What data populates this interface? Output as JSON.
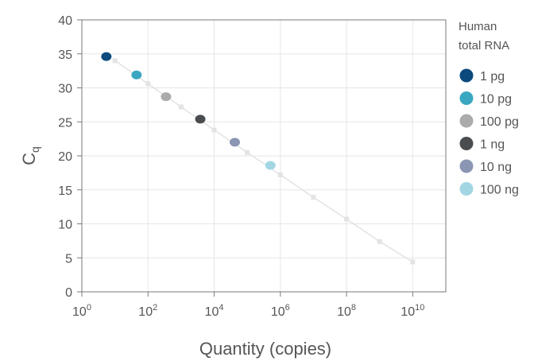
{
  "chart_data": {
    "type": "scatter",
    "xlabel": "Quantity (copies)",
    "ylabel": {
      "base": "C",
      "subscript": "q"
    },
    "x_scale": "log10",
    "xlim": [
      1,
      100000000000
    ],
    "ylim": [
      0,
      40
    ],
    "x_ticks": [
      {
        "value": 1,
        "base": "10",
        "exp": "0"
      },
      {
        "value": 100,
        "base": "10",
        "exp": "2"
      },
      {
        "value": 10000,
        "base": "10",
        "exp": "4"
      },
      {
        "value": 1000000,
        "base": "10",
        "exp": "6"
      },
      {
        "value": 100000000,
        "base": "10",
        "exp": "8"
      },
      {
        "value": 10000000000,
        "base": "10",
        "exp": "10"
      }
    ],
    "y_ticks": [
      "0",
      "5",
      "10",
      "15",
      "20",
      "25",
      "30",
      "35",
      "40"
    ],
    "grid": true,
    "legend": {
      "title": [
        "Human",
        "total RNA"
      ],
      "position": "right"
    },
    "standard_curve": {
      "color": "#e3e3e3",
      "points": [
        {
          "x": 10,
          "y": 34.0
        },
        {
          "x": 100,
          "y": 30.6
        },
        {
          "x": 1000,
          "y": 27.2
        },
        {
          "x": 10000,
          "y": 23.8
        },
        {
          "x": 100000,
          "y": 20.5
        },
        {
          "x": 1000000,
          "y": 17.2
        },
        {
          "x": 10000000,
          "y": 13.9
        },
        {
          "x": 100000000,
          "y": 10.7
        },
        {
          "x": 1000000000,
          "y": 7.4
        },
        {
          "x": 10000000000,
          "y": 4.4
        }
      ]
    },
    "series": [
      {
        "name": "1 pg",
        "color": "#0c4a7e",
        "x": 5.5,
        "y": 34.6
      },
      {
        "name": "10 pg",
        "color": "#3aa7c1",
        "x": 45,
        "y": 31.9
      },
      {
        "name": "100 pg",
        "color": "#ababab",
        "x": 350,
        "y": 28.7
      },
      {
        "name": "1 ng",
        "color": "#4a4d50",
        "x": 3800,
        "y": 25.4
      },
      {
        "name": "10 ng",
        "color": "#8b96b4",
        "x": 42000,
        "y": 22.0
      },
      {
        "name": "100 ng",
        "color": "#a3d6e3",
        "x": 500000,
        "y": 18.6
      }
    ]
  }
}
